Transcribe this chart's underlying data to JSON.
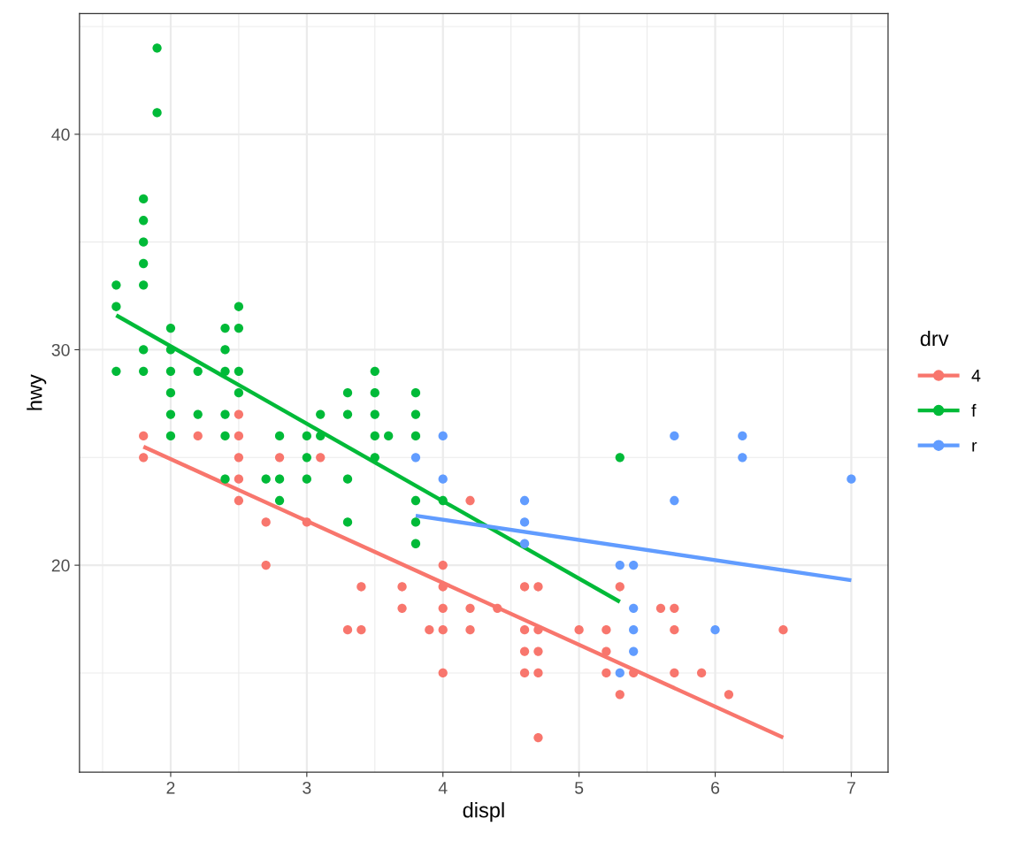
{
  "chart_data": {
    "type": "scatter",
    "xlabel": "displ",
    "ylabel": "hwy",
    "legend_title": "drv",
    "legend": "right",
    "grid": true,
    "xlim": [
      1.33,
      7.27
    ],
    "ylim": [
      10.4,
      45.6
    ],
    "xticks": [
      2,
      3,
      4,
      5,
      6,
      7
    ],
    "yticks": [
      20,
      30,
      40
    ],
    "series": [
      {
        "name": "4",
        "marker": "circle",
        "color": "#f8766d",
        "x": [
          1.8,
          1.8,
          2.2,
          2.5,
          2.5,
          2.5,
          2.5,
          2.5,
          2.7,
          2.7,
          2.8,
          3.0,
          3.1,
          3.3,
          3.4,
          3.4,
          3.7,
          3.7,
          3.9,
          4.0,
          4.0,
          4.0,
          4.0,
          4.0,
          4.2,
          4.2,
          4.2,
          4.4,
          4.6,
          4.6,
          4.6,
          4.6,
          4.7,
          4.7,
          4.7,
          4.7,
          4.7,
          5.0,
          5.2,
          5.2,
          5.2,
          5.3,
          5.3,
          5.4,
          5.6,
          5.7,
          5.7,
          5.7,
          5.9,
          6.1,
          6.5
        ],
        "values": [
          26,
          25,
          26,
          27,
          26,
          25,
          24,
          23,
          22,
          20,
          25,
          22,
          25,
          17,
          19,
          17,
          19,
          18,
          17,
          20,
          19,
          18,
          17,
          15,
          23,
          18,
          17,
          18,
          19,
          17,
          16,
          15,
          19,
          17,
          16,
          15,
          12,
          17,
          17,
          16,
          15,
          19,
          14,
          15,
          18,
          18,
          17,
          15,
          15,
          14,
          17
        ]
      },
      {
        "name": "f",
        "marker": "circle",
        "color": "#00ba38",
        "x": [
          1.6,
          1.6,
          1.6,
          1.8,
          1.8,
          1.8,
          1.8,
          1.8,
          1.8,
          1.8,
          1.9,
          1.9,
          2.0,
          2.0,
          2.0,
          2.0,
          2.0,
          2.0,
          2.2,
          2.2,
          2.4,
          2.4,
          2.4,
          2.4,
          2.4,
          2.4,
          2.5,
          2.5,
          2.5,
          2.5,
          2.7,
          2.8,
          2.8,
          2.8,
          3.0,
          3.0,
          3.0,
          3.1,
          3.1,
          3.3,
          3.3,
          3.3,
          3.3,
          3.5,
          3.5,
          3.5,
          3.5,
          3.5,
          3.6,
          3.8,
          3.8,
          3.8,
          3.8,
          3.8,
          3.8,
          4.0,
          5.3
        ],
        "values": [
          33,
          32,
          29,
          37,
          36,
          35,
          34,
          33,
          30,
          29,
          44,
          41,
          31,
          30,
          29,
          28,
          27,
          26,
          29,
          27,
          31,
          30,
          29,
          27,
          26,
          24,
          32,
          31,
          29,
          28,
          24,
          26,
          24,
          23,
          26,
          25,
          24,
          27,
          26,
          28,
          27,
          24,
          22,
          29,
          28,
          27,
          26,
          25,
          26,
          28,
          27,
          26,
          23,
          22,
          21,
          23,
          25
        ]
      },
      {
        "name": "r",
        "marker": "circle",
        "color": "#619cff",
        "x": [
          3.8,
          4.0,
          4.0,
          4.6,
          4.6,
          4.6,
          5.3,
          5.3,
          5.4,
          5.4,
          5.4,
          5.4,
          5.7,
          5.7,
          6.0,
          6.2,
          6.2,
          7.0
        ],
        "values": [
          25,
          26,
          24,
          23,
          22,
          21,
          20,
          15,
          20,
          18,
          17,
          16,
          26,
          23,
          17,
          26,
          25,
          24
        ]
      },
      {
        "type": "line",
        "color": "#f8766d",
        "x": [
          1.8,
          6.5
        ],
        "values": [
          25.5,
          12.0
        ]
      },
      {
        "type": "line",
        "color": "#00ba38",
        "x": [
          1.6,
          5.3
        ],
        "values": [
          31.6,
          18.3
        ]
      },
      {
        "type": "line",
        "color": "#619cff",
        "x": [
          3.8,
          7.0
        ],
        "values": [
          22.3,
          19.3
        ]
      }
    ]
  }
}
